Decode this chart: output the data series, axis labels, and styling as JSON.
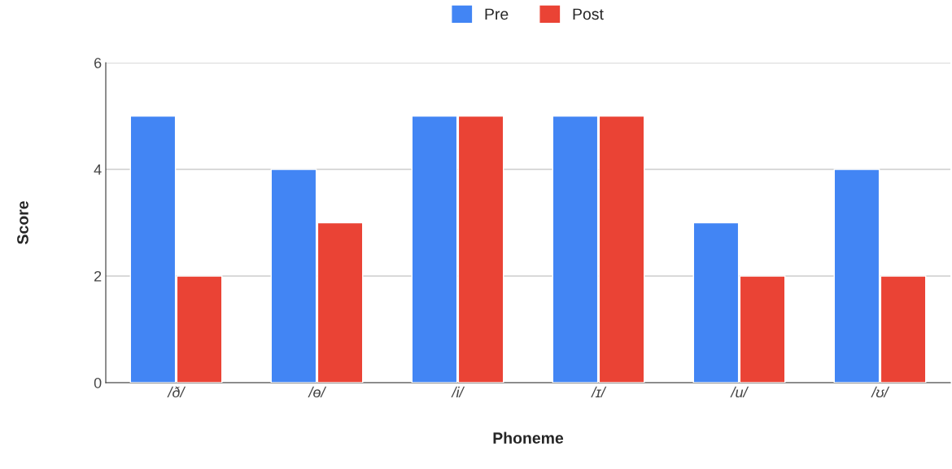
{
  "chart_data": {
    "type": "bar",
    "xlabel": "Phoneme",
    "ylabel": "Score",
    "categories": [
      "/ð/",
      "/ɵ/",
      "/i/",
      "/ɪ/",
      "/u/",
      "/ʊ/"
    ],
    "series": [
      {
        "name": "Pre",
        "color": "#4285f4",
        "values": [
          5,
          4,
          5,
          5,
          3,
          4
        ]
      },
      {
        "name": "Post",
        "color": "#ea4335",
        "values": [
          2,
          3,
          5,
          5,
          2,
          2
        ]
      }
    ],
    "ylim": [
      0,
      6
    ],
    "yticks": [
      0,
      2,
      4,
      6
    ],
    "grid": "y",
    "legend": "top"
  }
}
